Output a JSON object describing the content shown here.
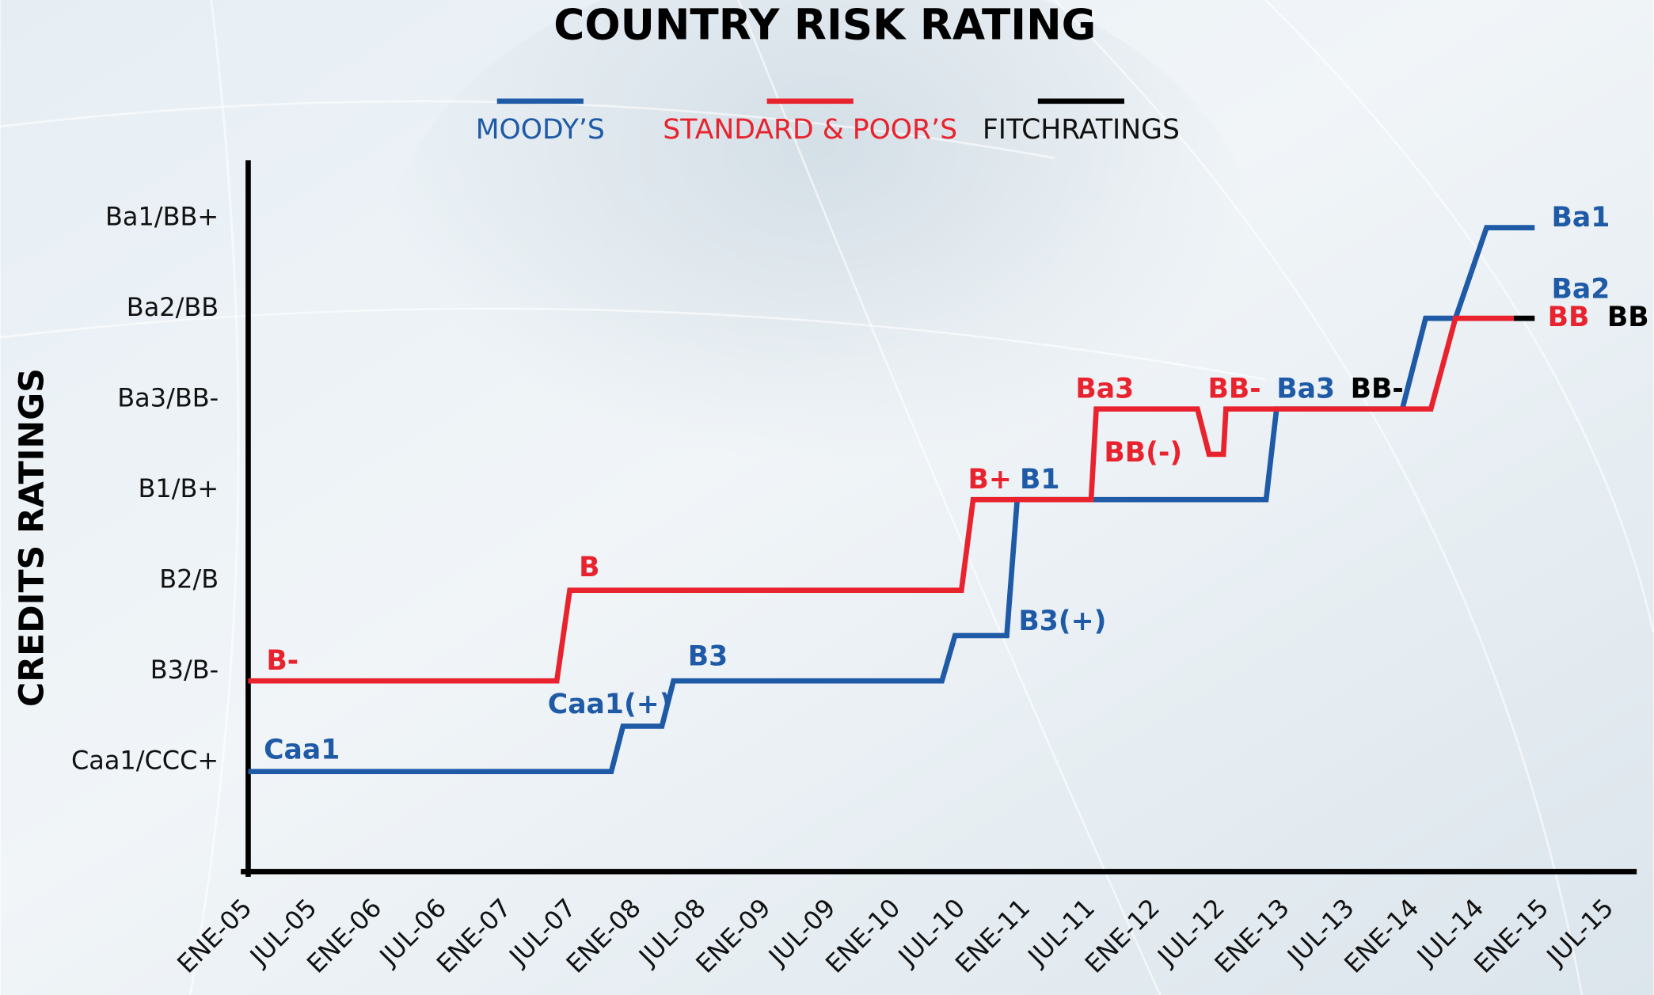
{
  "chart_data": {
    "type": "line",
    "title": "COUNTRY RISK RATING",
    "y_label": "CREDITS RATINGS",
    "xlim": [
      2005,
      2015.7
    ],
    "xticks": [
      {
        "value": 2005,
        "label": "ENE-05"
      },
      {
        "value": 2005.5,
        "label": "JUL-05"
      },
      {
        "value": 2006,
        "label": "ENE-06"
      },
      {
        "value": 2006.5,
        "label": "JUL-06"
      },
      {
        "value": 2007,
        "label": "ENE-07"
      },
      {
        "value": 2007.5,
        "label": "JUL-07"
      },
      {
        "value": 2008,
        "label": "ENE-08"
      },
      {
        "value": 2008.5,
        "label": "JUL-08"
      },
      {
        "value": 2009,
        "label": "ENE-09"
      },
      {
        "value": 2009.5,
        "label": "JUL-09"
      },
      {
        "value": 2010,
        "label": "ENE-10"
      },
      {
        "value": 2010.5,
        "label": "JUL-10"
      },
      {
        "value": 2011,
        "label": "ENE-11"
      },
      {
        "value": 2011.5,
        "label": "JUL-11"
      },
      {
        "value": 2012,
        "label": "ENE-12"
      },
      {
        "value": 2012.5,
        "label": "JUL-12"
      },
      {
        "value": 2013,
        "label": "ENE-13"
      },
      {
        "value": 2013.5,
        "label": "JUL-13"
      },
      {
        "value": 2014,
        "label": "ENE-14"
      },
      {
        "value": 2014.5,
        "label": "JUL-14"
      },
      {
        "value": 2015,
        "label": "ENE-15"
      },
      {
        "value": 2015.5,
        "label": "JUL-15"
      }
    ],
    "ylim": [
      0,
      7.85
    ],
    "yticks": [
      {
        "value": 1,
        "label": "Caa1/CCC+"
      },
      {
        "value": 2,
        "label": "B3/B-"
      },
      {
        "value": 3,
        "label": "B2/B"
      },
      {
        "value": 4,
        "label": "B1/B+"
      },
      {
        "value": 5,
        "label": "Ba3/BB-"
      },
      {
        "value": 6,
        "label": "Ba2/BB"
      },
      {
        "value": 7,
        "label": "Ba1/BB+"
      }
    ],
    "series": [
      {
        "name": "MOODY’S",
        "color": "#1f5aa6",
        "x": [
          2005.0,
          2007.8,
          2007.89,
          2008.19,
          2008.28,
          2010.35,
          2010.45,
          2010.85,
          2010.93,
          2012.85,
          2012.93,
          2013.9,
          2014.08,
          2014.31,
          2014.55,
          2014.92
        ],
        "values": [
          1,
          1,
          1.5,
          1.5,
          2,
          2,
          2.5,
          2.5,
          4,
          4,
          5,
          5,
          6,
          6,
          7,
          7
        ]
      },
      {
        "name": "STANDARD & POOR’S",
        "color": "#e8232e",
        "x": [
          2005.0,
          2007.38,
          2007.48,
          2010.5,
          2010.59,
          2011.5,
          2011.54,
          2012.32,
          2012.41,
          2012.52,
          2012.54,
          2014.12,
          2014.31,
          2014.76
        ],
        "values": [
          2,
          2,
          3,
          3,
          4,
          4,
          5,
          5,
          4.5,
          4.5,
          5,
          5,
          6,
          6
        ]
      },
      {
        "name": "FITCHRATINGS",
        "color": "#000000",
        "x": [
          2014.76,
          2014.92
        ],
        "values": [
          6,
          6
        ]
      }
    ],
    "annotations": [
      {
        "text": "B-",
        "x": 2005.14,
        "y": 2.21,
        "color": "#e8232e"
      },
      {
        "text": "B",
        "x": 2007.55,
        "y": 3.24,
        "color": "#e8232e"
      },
      {
        "text": "B+",
        "x": 2010.55,
        "y": 4.21,
        "color": "#e8232e"
      },
      {
        "text": "Ba3",
        "x": 2011.38,
        "y": 5.21,
        "color": "#e8232e"
      },
      {
        "text": "BB(-)",
        "x": 2011.6,
        "y": 4.51,
        "color": "#e8232e"
      },
      {
        "text": "BB-",
        "x": 2012.4,
        "y": 5.21,
        "color": "#e8232e"
      },
      {
        "text": "BB",
        "x": 2015.02,
        "y": 6.0,
        "color": "#e8232e"
      },
      {
        "text": "Caa1",
        "x": 2005.12,
        "y": 1.23,
        "color": "#1f5aa6"
      },
      {
        "text": "Caa1(+)",
        "x": 2007.31,
        "y": 1.73,
        "color": "#1f5aa6"
      },
      {
        "text": "B3",
        "x": 2008.39,
        "y": 2.26,
        "color": "#1f5aa6"
      },
      {
        "text": "B3(+)",
        "x": 2010.94,
        "y": 2.65,
        "color": "#1f5aa6"
      },
      {
        "text": "B1",
        "x": 2010.95,
        "y": 4.21,
        "color": "#1f5aa6"
      },
      {
        "text": "Ba3",
        "x": 2012.93,
        "y": 5.21,
        "color": "#1f5aa6"
      },
      {
        "text": "Ba2",
        "x": 2015.05,
        "y": 6.31,
        "color": "#1f5aa6"
      },
      {
        "text": "Ba1",
        "x": 2015.05,
        "y": 7.1,
        "color": "#1f5aa6"
      },
      {
        "text": "BB-",
        "x": 2013.5,
        "y": 5.21,
        "color": "#000000"
      },
      {
        "text": "BB",
        "x": 2015.48,
        "y": 6.0,
        "color": "#000000"
      }
    ]
  }
}
